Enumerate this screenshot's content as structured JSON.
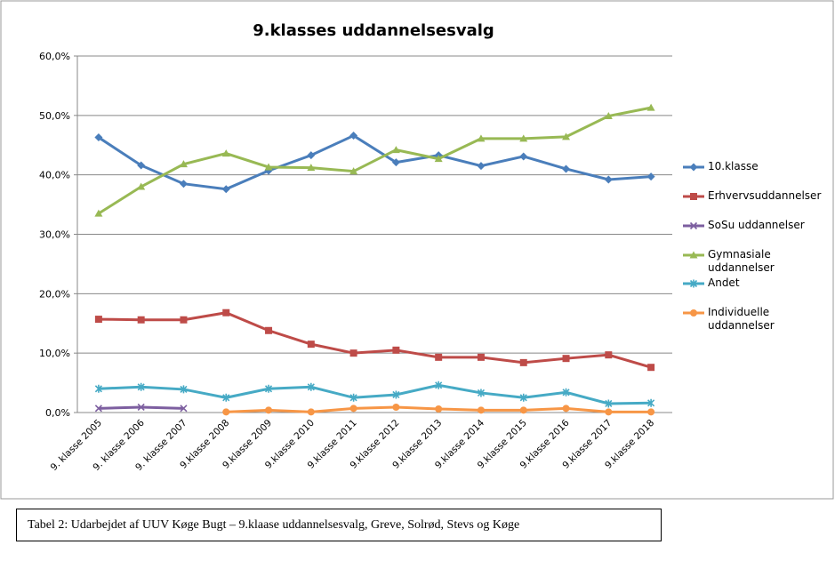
{
  "chart_data": {
    "type": "line",
    "title": "9.klasses uddannelsesvalg",
    "categories": [
      "9. klasse 2005",
      "9. klasse 2006",
      "9. klasse 2007",
      "9.klasse 2008",
      "9.klasse 2009",
      "9.klasse 2010",
      "9.klasse 2011",
      "9.klasse 2012",
      "9.klasse 2013",
      "9.klasse 2014",
      "9.klasse 2015",
      "9.klasse 2016",
      "9.klasse 2017",
      "9.klasse 2018"
    ],
    "series": [
      {
        "name": "10.klasse",
        "color": "#4a7ebb",
        "marker": "diamond",
        "values": [
          46.3,
          41.6,
          38.5,
          37.6,
          40.7,
          43.3,
          46.6,
          42.1,
          43.3,
          41.5,
          43.1,
          41.0,
          39.2,
          39.7
        ]
      },
      {
        "name": "Erhvervsuddannelser",
        "color": "#be4b48",
        "marker": "square",
        "values": [
          15.7,
          15.6,
          15.6,
          16.8,
          13.8,
          11.5,
          10.0,
          10.5,
          9.3,
          9.3,
          8.4,
          9.1,
          9.7,
          7.6
        ]
      },
      {
        "name": "SoSu uddannelser",
        "color": "#7d5fa0",
        "marker": "x",
        "values": [
          0.7,
          0.9,
          0.7,
          null,
          null,
          null,
          null,
          null,
          null,
          null,
          null,
          null,
          null,
          null
        ]
      },
      {
        "name": "Gymnasiale uddannelser",
        "color": "#98b954",
        "marker": "triangle",
        "values": [
          33.5,
          38.0,
          41.8,
          43.6,
          41.3,
          41.2,
          40.6,
          44.2,
          42.7,
          46.1,
          46.1,
          46.4,
          49.9,
          51.3
        ]
      },
      {
        "name": "Andet",
        "color": "#46aac5",
        "marker": "star",
        "values": [
          4.0,
          4.3,
          3.9,
          2.5,
          4.0,
          4.3,
          2.5,
          3.0,
          4.6,
          3.3,
          2.5,
          3.4,
          1.5,
          1.6
        ]
      },
      {
        "name": "Individuelle uddannelser",
        "color": "#f79646",
        "marker": "circle",
        "values": [
          null,
          null,
          null,
          0.1,
          0.4,
          0.1,
          0.7,
          0.9,
          0.6,
          0.4,
          0.4,
          0.7,
          0.1,
          0.1
        ]
      }
    ],
    "ylim": [
      0,
      60
    ],
    "yticks": [
      {
        "value": 0,
        "label": "0,0%"
      },
      {
        "value": 10,
        "label": "10,0%"
      },
      {
        "value": 20,
        "label": "20,0%"
      },
      {
        "value": 30,
        "label": "30,0%"
      },
      {
        "value": 40,
        "label": "40,0%"
      },
      {
        "value": 50,
        "label": "50,0%"
      },
      {
        "value": 60,
        "label": "60,0%"
      }
    ],
    "grid": true,
    "legend": "right"
  },
  "caption": "Tabel 2: Udarbejdet af UUV Køge Bugt – 9.klaase uddannelsesvalg, Greve, Solrød, Stevs og Køge"
}
